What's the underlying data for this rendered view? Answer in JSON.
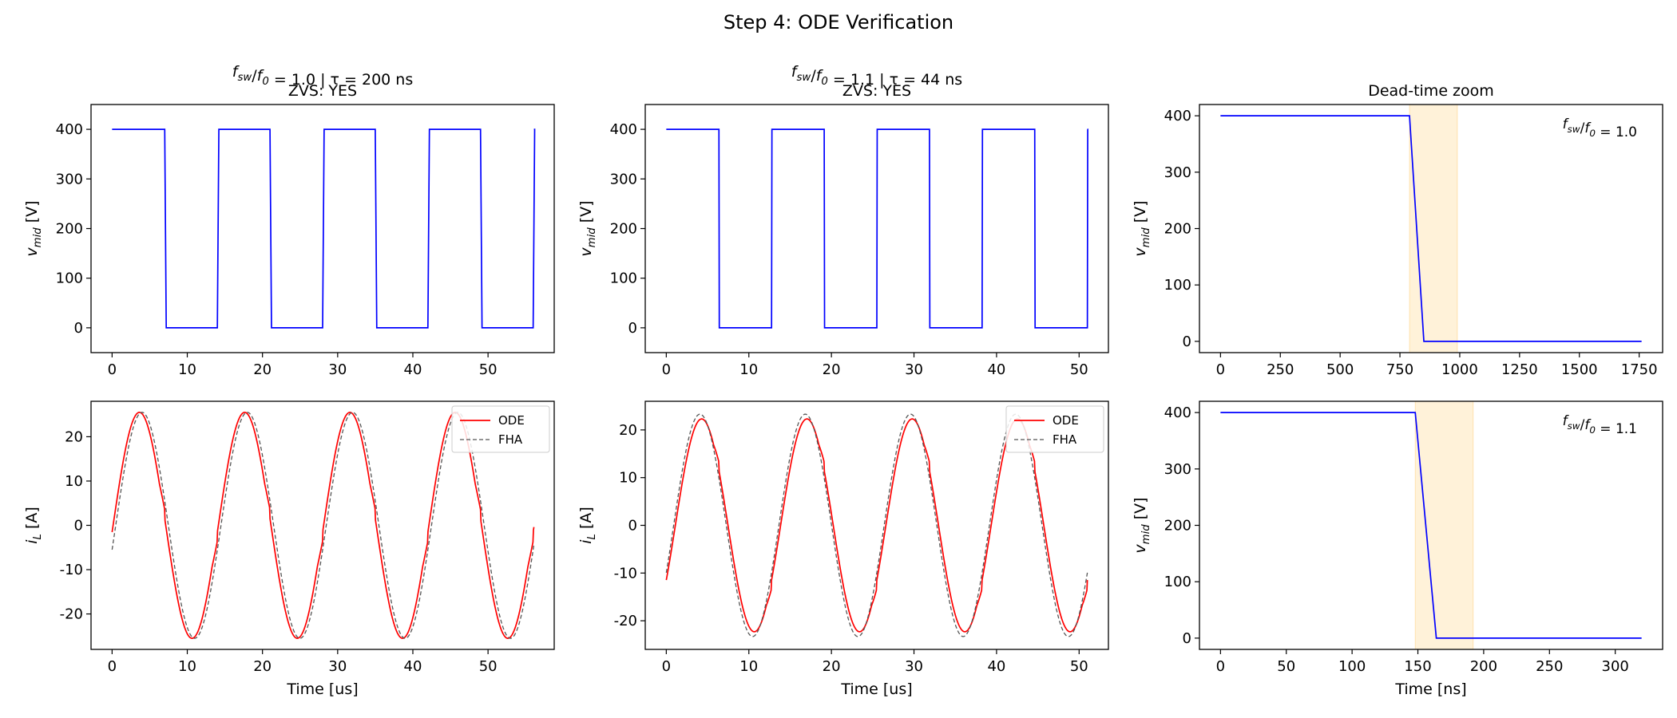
{
  "figure": {
    "title": "Step 4: ODE Verification"
  },
  "chart_data": [
    {
      "id": "v1",
      "type": "line",
      "title_line1": "f_sw/f_0 = 1.0  |  τ = 200 ns",
      "title_parts": {
        "a": "f",
        "a_sub": "sw",
        "b": "/",
        "c": "f",
        "c_sub": "0",
        "d": " = 1.0  |  τ = 200 ns"
      },
      "title_line2": "ZVS: YES",
      "ylabel": "v_mid [V]",
      "ylabel_parts": {
        "main": "v",
        "sub": "mid",
        "rest": " [V]"
      },
      "xlabel": "",
      "xlim": [
        -2.8,
        58.8
      ],
      "ylim": [
        -50,
        450
      ],
      "xticks": [
        0,
        10,
        20,
        30,
        40,
        50
      ],
      "yticks": [
        0,
        100,
        200,
        300,
        400
      ],
      "series": [
        {
          "color": "#0000ff",
          "kind": "square",
          "period": 14.0,
          "dead": 0.2,
          "high": 400,
          "low": 0,
          "tmax": 56.1
        }
      ]
    },
    {
      "id": "v2",
      "type": "line",
      "title_parts": {
        "a": "f",
        "a_sub": "sw",
        "b": "/",
        "c": "f",
        "c_sub": "0",
        "d": " = 1.1  |  τ = 44 ns"
      },
      "title_line2": "ZVS: YES",
      "ylabel_parts": {
        "main": "v",
        "sub": "mid",
        "rest": " [V]"
      },
      "xlabel": "",
      "xlim": [
        -2.55,
        53.55
      ],
      "ylim": [
        -50,
        450
      ],
      "xticks": [
        0,
        10,
        20,
        30,
        40,
        50
      ],
      "yticks": [
        0,
        100,
        200,
        300,
        400
      ],
      "series": [
        {
          "color": "#0000ff",
          "kind": "square",
          "period": 12.75,
          "dead": 0.044,
          "high": 400,
          "low": 0,
          "tmax": 51.0
        }
      ]
    },
    {
      "id": "z1",
      "type": "line",
      "title": "Dead-time zoom",
      "ylabel_parts": {
        "main": "v",
        "sub": "mid",
        "rest": " [V]"
      },
      "xlabel": "",
      "annotation_parts": {
        "a": "f",
        "a_sub": "sw",
        "b": "/",
        "c": "f",
        "c_sub": "0",
        "d": " = 1.0"
      },
      "xlim": [
        -88,
        1848
      ],
      "ylim": [
        -20,
        420
      ],
      "xticks": [
        0,
        250,
        500,
        750,
        1000,
        1250,
        1500,
        1750
      ],
      "yticks": [
        0,
        100,
        200,
        300,
        400
      ],
      "shade": [
        790,
        990
      ],
      "series": [
        {
          "color": "#0000ff",
          "points": [
            [
              0,
              400
            ],
            [
              790,
              400
            ],
            [
              850,
              0
            ],
            [
              1760,
              0
            ]
          ]
        }
      ]
    },
    {
      "id": "i1",
      "type": "line",
      "ylabel_parts": {
        "main": "i",
        "sub": "L",
        "rest": " [A]"
      },
      "xlabel": "Time [us]",
      "xlim": [
        -2.8,
        58.8
      ],
      "ylim": [
        -28,
        28
      ],
      "xticks": [
        0,
        10,
        20,
        30,
        40,
        50
      ],
      "yticks": [
        -20,
        -10,
        0,
        10,
        20
      ],
      "legend": {
        "position": "upper right",
        "entries": [
          "ODE",
          "FHA"
        ]
      },
      "series": [
        {
          "name": "ODE",
          "color": "#ff0000",
          "kind": "ode",
          "amp": 25.5,
          "period": 14.0,
          "phase": -0.06,
          "tmax": 56.1
        },
        {
          "name": "FHA",
          "color": "#555555",
          "dash": true,
          "kind": "sine",
          "amp": 25.5,
          "period": 14.0,
          "phase": -0.06,
          "delay": 0.35,
          "tmax": 56.1
        }
      ]
    },
    {
      "id": "i2",
      "type": "line",
      "ylabel_parts": {
        "main": "i",
        "sub": "L",
        "rest": " [A]"
      },
      "xlabel": "Time [us]",
      "xlim": [
        -2.55,
        53.55
      ],
      "ylim": [
        -26,
        26
      ],
      "xticks": [
        0,
        10,
        20,
        30,
        40,
        50
      ],
      "yticks": [
        -20,
        -10,
        0,
        10,
        20
      ],
      "legend": {
        "position": "upper right",
        "entries": [
          "ODE",
          "FHA"
        ]
      },
      "series": [
        {
          "name": "ODE",
          "color": "#ff0000",
          "kind": "ode",
          "amp": 22.3,
          "period": 12.75,
          "phase": -0.54,
          "tmax": 51.0
        },
        {
          "name": "FHA",
          "color": "#555555",
          "dash": true,
          "kind": "sine",
          "amp": 23.3,
          "period": 12.75,
          "phase": -0.44,
          "tmax": 51.0
        }
      ]
    },
    {
      "id": "z2",
      "type": "line",
      "ylabel_parts": {
        "main": "v",
        "sub": "mid",
        "rest": " [V]"
      },
      "xlabel": "Time [ns]",
      "annotation_parts": {
        "a": "f",
        "a_sub": "sw",
        "b": "/",
        "c": "f",
        "c_sub": "0",
        "d": " = 1.1"
      },
      "xlim": [
        -16,
        336
      ],
      "ylim": [
        -20,
        420
      ],
      "xticks": [
        0,
        50,
        100,
        150,
        200,
        250,
        300
      ],
      "yticks": [
        0,
        100,
        200,
        300,
        400
      ],
      "shade": [
        148,
        192
      ],
      "series": [
        {
          "color": "#0000ff",
          "points": [
            [
              0,
              400
            ],
            [
              148,
              400
            ],
            [
              164,
              0
            ],
            [
              320,
              0
            ]
          ]
        }
      ]
    }
  ]
}
